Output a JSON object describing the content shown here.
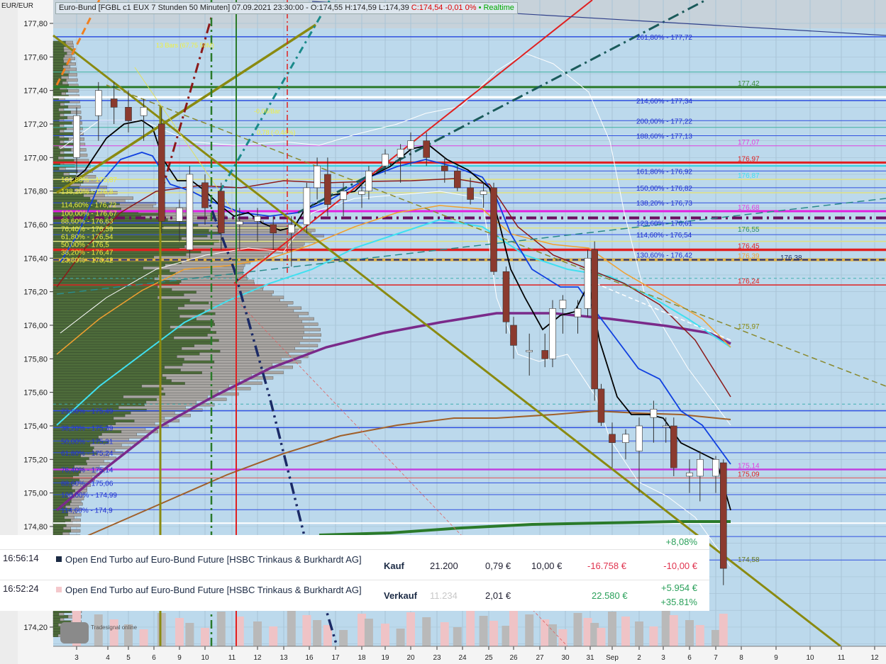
{
  "header": {
    "unit": "EUR/EUR",
    "title": "Euro-Bund [FGBL c1 EUX 7 Stunden 50 Minuten] 07.09.2021 23:30:00 - O:174,55 H:174,59 L:174,39",
    "change": "C:174,54 -0,01 0%",
    "realtime": "• Realtime"
  },
  "watermark": "Tradesignal online",
  "colors": {
    "background": "#bcd9ec",
    "bear_candle": "#8b3a2e",
    "bull_candle": "#ffffff",
    "gain": "#2aa05a",
    "loss": "#e0344f"
  },
  "trades": {
    "top_partial": "+8,08%",
    "rows": [
      {
        "time": "16:56:14",
        "marker_color": "#1b2a44",
        "name": "Open End Turbo auf Euro-Bund Future [HSBC Trinkaus & Burkhardt AG]",
        "side": "Kauf",
        "qty": "21.200",
        "price": "0,79 €",
        "fee": "10,00 €",
        "amount": "-16.758 €",
        "pl": "-10,00 €",
        "pl_pct": ""
      },
      {
        "time": "16:52:24",
        "marker_color": "#f4c8cc",
        "name": "Open End Turbo auf Euro-Bund Future [HSBC Trinkaus & Burkhardt AG]",
        "side": "Verkauf",
        "qty": "11.234",
        "price": "2,01 €",
        "fee": "",
        "amount": "22.580 €",
        "pl": "+5.954 €",
        "pl_pct": "+35.81%"
      }
    ]
  },
  "chart_data": {
    "type": "candlestick",
    "yrange": [
      174.1,
      177.87
    ],
    "y_ticks": [
      "177,80",
      "177,60",
      "177,40",
      "177,20",
      "177,00",
      "176,80",
      "176,60",
      "176,40",
      "176,20",
      "176,00",
      "175,80",
      "175,60",
      "175,40",
      "175,20",
      "175,00",
      "174,80",
      "174,20"
    ],
    "x_ticks": [
      "3",
      "4",
      "5",
      "6",
      "9",
      "10",
      "11",
      "12",
      "13",
      "16",
      "17",
      "18",
      "19",
      "20",
      "23",
      "24",
      "25",
      "26",
      "27",
      "30",
      "31",
      "Sep",
      "2",
      "3",
      "6",
      "7",
      "8",
      "9",
      "10",
      "11",
      "12"
    ],
    "candles": [
      {
        "d": 0,
        "o": 177.0,
        "h": 177.3,
        "l": 176.9,
        "c": 177.25
      },
      {
        "d": 0.7,
        "o": 177.25,
        "h": 177.45,
        "l": 177.1,
        "c": 177.4
      },
      {
        "d": 1.3,
        "o": 177.35,
        "h": 177.45,
        "l": 177.2,
        "c": 177.3
      },
      {
        "d": 2,
        "o": 177.3,
        "h": 177.4,
        "l": 177.15,
        "c": 177.22
      },
      {
        "d": 2.6,
        "o": 177.25,
        "h": 177.35,
        "l": 177.1,
        "c": 177.3
      },
      {
        "d": 3.3,
        "o": 177.2,
        "h": 177.3,
        "l": 176.55,
        "c": 176.62
      },
      {
        "d": 4,
        "o": 176.62,
        "h": 176.75,
        "l": 176.5,
        "c": 176.7
      },
      {
        "d": 4.4,
        "o": 176.45,
        "h": 176.95,
        "l": 176.4,
        "c": 176.9
      },
      {
        "d": 5,
        "o": 176.85,
        "h": 176.9,
        "l": 176.6,
        "c": 176.7
      },
      {
        "d": 5.6,
        "o": 176.8,
        "h": 176.85,
        "l": 176.45,
        "c": 176.55
      },
      {
        "d": 6.3,
        "o": 176.6,
        "h": 176.7,
        "l": 176.45,
        "c": 176.62
      },
      {
        "d": 7,
        "o": 176.62,
        "h": 176.7,
        "l": 176.5,
        "c": 176.65
      },
      {
        "d": 7.6,
        "o": 176.6,
        "h": 176.65,
        "l": 176.45,
        "c": 176.55
      },
      {
        "d": 8.3,
        "o": 176.55,
        "h": 176.65,
        "l": 176.35,
        "c": 176.6
      },
      {
        "d": 8.9,
        "o": 176.6,
        "h": 176.85,
        "l": 176.55,
        "c": 176.82
      },
      {
        "d": 9.3,
        "o": 176.82,
        "h": 177.0,
        "l": 176.75,
        "c": 176.95
      },
      {
        "d": 9.7,
        "o": 176.9,
        "h": 177.0,
        "l": 176.65,
        "c": 176.72
      },
      {
        "d": 10.3,
        "o": 176.75,
        "h": 176.85,
        "l": 176.65,
        "c": 176.8
      },
      {
        "d": 11,
        "o": 176.78,
        "h": 176.85,
        "l": 176.7,
        "c": 176.8
      },
      {
        "d": 11.3,
        "o": 176.8,
        "h": 176.95,
        "l": 176.75,
        "c": 176.92
      },
      {
        "d": 12,
        "o": 176.95,
        "h": 177.05,
        "l": 176.9,
        "c": 177.02
      },
      {
        "d": 12.6,
        "o": 177.0,
        "h": 177.08,
        "l": 176.85,
        "c": 177.05
      },
      {
        "d": 13,
        "o": 177.05,
        "h": 177.15,
        "l": 176.95,
        "c": 177.1
      },
      {
        "d": 13.6,
        "o": 177.1,
        "h": 177.15,
        "l": 176.95,
        "c": 177.0
      },
      {
        "d": 14.3,
        "o": 176.95,
        "h": 177.0,
        "l": 176.85,
        "c": 176.92
      },
      {
        "d": 14.8,
        "o": 176.92,
        "h": 176.95,
        "l": 176.8,
        "c": 176.82
      },
      {
        "d": 15.3,
        "o": 176.82,
        "h": 176.88,
        "l": 176.72,
        "c": 176.75
      },
      {
        "d": 15.8,
        "o": 176.78,
        "h": 176.85,
        "l": 176.7,
        "c": 176.8
      },
      {
        "d": 16.2,
        "o": 176.82,
        "h": 176.85,
        "l": 176.3,
        "c": 176.32
      },
      {
        "d": 16.7,
        "o": 176.32,
        "h": 176.35,
        "l": 175.95,
        "c": 176.02
      },
      {
        "d": 17,
        "o": 176.0,
        "h": 176.05,
        "l": 175.8,
        "c": 175.88
      },
      {
        "d": 17.6,
        "o": 175.85,
        "h": 175.95,
        "l": 175.7,
        "c": 175.85
      },
      {
        "d": 18.2,
        "o": 175.85,
        "h": 175.95,
        "l": 175.75,
        "c": 175.8
      },
      {
        "d": 18.5,
        "o": 175.8,
        "h": 176.15,
        "l": 175.75,
        "c": 176.1
      },
      {
        "d": 18.9,
        "o": 176.1,
        "h": 176.18,
        "l": 175.95,
        "c": 176.15
      },
      {
        "d": 19.5,
        "o": 176.05,
        "h": 176.15,
        "l": 175.95,
        "c": 176.1
      },
      {
        "d": 19.9,
        "o": 176.1,
        "h": 176.45,
        "l": 176.05,
        "c": 176.4
      },
      {
        "d": 20.2,
        "o": 176.45,
        "h": 176.5,
        "l": 175.55,
        "c": 175.62
      },
      {
        "d": 20.5,
        "o": 175.62,
        "h": 175.65,
        "l": 175.4,
        "c": 175.42
      },
      {
        "d": 21,
        "o": 175.35,
        "h": 175.42,
        "l": 175.15,
        "c": 175.3
      },
      {
        "d": 21.5,
        "o": 175.3,
        "h": 175.38,
        "l": 175.2,
        "c": 175.35
      },
      {
        "d": 22,
        "o": 175.25,
        "h": 175.45,
        "l": 175.0,
        "c": 175.4
      },
      {
        "d": 22.6,
        "o": 175.45,
        "h": 175.55,
        "l": 175.3,
        "c": 175.5
      },
      {
        "d": 23.1,
        "o": 175.4,
        "h": 175.45,
        "l": 175.3,
        "c": 175.4
      },
      {
        "d": 23.4,
        "o": 175.4,
        "h": 175.45,
        "l": 175.1,
        "c": 175.15
      },
      {
        "d": 24,
        "o": 175.1,
        "h": 175.2,
        "l": 175.0,
        "c": 175.12
      },
      {
        "d": 24.4,
        "o": 175.1,
        "h": 175.25,
        "l": 174.95,
        "c": 175.2
      },
      {
        "d": 25,
        "o": 175.1,
        "h": 175.22,
        "l": 175.0,
        "c": 175.2
      },
      {
        "d": 25.3,
        "o": 175.18,
        "h": 175.2,
        "l": 174.45,
        "c": 174.55
      }
    ],
    "levels_right": [
      {
        "label": "261,80% - 177,72",
        "p": 177.72,
        "color": "#2030d0"
      },
      {
        "label": "177,42",
        "p": 177.42,
        "color": "#3a8a3a"
      },
      {
        "label": "214,60% - 177,34",
        "p": 177.34,
        "color": "#2030d0"
      },
      {
        "label": "200,00% - 177,22",
        "p": 177.22,
        "color": "#2030d0"
      },
      {
        "label": "177,07",
        "p": 177.07,
        "color": "#e040e0"
      },
      {
        "label": "188,60% - 177,13",
        "p": 177.13,
        "color": "#2030d0"
      },
      {
        "label": "176,97",
        "p": 176.97,
        "color": "#e02020"
      },
      {
        "label": "176,87",
        "p": 176.87,
        "color": "#40e0f0"
      },
      {
        "label": "161,80% - 176,92",
        "p": 176.92,
        "color": "#2030d0"
      },
      {
        "label": "150,00% - 176,82",
        "p": 176.82,
        "color": "#2030d0"
      },
      {
        "label": "176,68",
        "p": 176.68,
        "color": "#e040e0"
      },
      {
        "label": "138,20% - 176,73",
        "p": 176.73,
        "color": "#2030d0"
      },
      {
        "label": "123,60% - 176,61",
        "p": 176.61,
        "color": "#2030d0"
      },
      {
        "label": "176,55",
        "p": 176.55,
        "color": "#2a8a6a"
      },
      {
        "label": "114,60% - 176,54",
        "p": 176.54,
        "color": "#2030d0"
      },
      {
        "label": "176,38",
        "p": 176.38,
        "color": "#1b2a66"
      },
      {
        "label": "176,45",
        "p": 176.45,
        "color": "#e02020"
      },
      {
        "label": "130,60% - 176,42",
        "p": 176.42,
        "color": "#2030d0"
      },
      {
        "label": "176,39",
        "p": 176.39,
        "color": "#f0a030"
      },
      {
        "label": "176,24",
        "p": 176.24,
        "color": "#e02020"
      },
      {
        "label": "175,97",
        "p": 175.97,
        "color": "#8a8a10"
      },
      {
        "label": "175,14",
        "p": 175.14,
        "color": "#e040e0"
      },
      {
        "label": "175,09",
        "p": 175.09,
        "color": "#e02020"
      },
      {
        "label": "174,58",
        "p": 174.58,
        "color": "#6a7a20"
      }
    ],
    "levels_left_yellow": [
      "161,80% - 176,87",
      "138,20% - 176,8",
      "114,60% - 176,72",
      "100,00% - 176,67",
      "88,60% - 176,63",
      "76,40% - 176,59",
      "61,80% - 176,54",
      "50,00% - 176,5",
      "38,20% - 176,47",
      "23,60% - 176,42"
    ],
    "levels_left_blue": [
      "23,60% - 175,49",
      "38,20% - 175,39",
      "50,00% - 175,31",
      "61,80% - 175,24",
      "76,40% - 175,14",
      "88,60% - 175,06",
      "100,00% - 174,99",
      "114,60% - 174,9"
    ],
    "annotations": [
      "13 Bars (67,75 50M)",
      "-0,06/Bar",
      "0,78 (-0,44%)"
    ],
    "horizontal_lines": [
      {
        "p": 177.72,
        "color": "#3050e0",
        "w": 1.5
      },
      {
        "p": 177.51,
        "color": "#40b0a0",
        "w": 1
      },
      {
        "p": 177.42,
        "color": "#2a7a2a",
        "w": 3
      },
      {
        "p": 177.36,
        "color": "#ffffff",
        "w": 3
      },
      {
        "p": 177.34,
        "color": "#3050e0",
        "w": 1.5
      },
      {
        "p": 177.22,
        "color": "#3050e0",
        "w": 1
      },
      {
        "p": 177.18,
        "color": "#40b0a0",
        "w": 1
      },
      {
        "p": 177.13,
        "color": "#3050e0",
        "w": 1
      },
      {
        "p": 177.07,
        "color": "#e040e0",
        "w": 1
      },
      {
        "p": 176.97,
        "color": "#e02020",
        "w": 3
      },
      {
        "p": 176.95,
        "color": "#30d0e0",
        "w": 2
      },
      {
        "p": 176.92,
        "color": "#3050e0",
        "w": 1
      },
      {
        "p": 176.87,
        "color": "#e0e080",
        "w": 1.5
      },
      {
        "p": 176.82,
        "color": "#3050e0",
        "w": 1
      },
      {
        "p": 176.79,
        "color": "#e0e080",
        "w": 1.5
      },
      {
        "p": 176.73,
        "color": "#3050e0",
        "w": 1
      },
      {
        "p": 176.68,
        "color": "#e020e0",
        "w": 3
      },
      {
        "p": 176.64,
        "color": "#6a1060",
        "w": 4,
        "dash": "14 6 3 6"
      },
      {
        "p": 176.61,
        "color": "#3050e0",
        "w": 1.5
      },
      {
        "p": 176.58,
        "color": "#e0e080",
        "w": 1.5
      },
      {
        "p": 176.54,
        "color": "#3050e0",
        "w": 1
      },
      {
        "p": 176.5,
        "color": "#e0e080",
        "w": 1.5
      },
      {
        "p": 176.45,
        "color": "#e02020",
        "w": 3.5
      },
      {
        "p": 176.39,
        "color": "#e0b040",
        "w": 4
      },
      {
        "p": 176.39,
        "color": "#1b2a80",
        "w": 2,
        "dash": "8 4"
      },
      {
        "p": 176.28,
        "color": "#40b0b0",
        "w": 1,
        "dash": "4 4"
      },
      {
        "p": 176.24,
        "color": "#e02020",
        "w": 1.5
      },
      {
        "p": 175.53,
        "color": "#40b0b0",
        "w": 1,
        "dash": "4 4"
      },
      {
        "p": 175.49,
        "color": "#3050e0",
        "w": 1.5
      },
      {
        "p": 175.39,
        "color": "#3050e0",
        "w": 1.5
      },
      {
        "p": 175.31,
        "color": "#3050e0",
        "w": 1
      },
      {
        "p": 175.24,
        "color": "#3050e0",
        "w": 1
      },
      {
        "p": 175.14,
        "color": "#c040e0",
        "w": 2.5
      },
      {
        "p": 175.09,
        "color": "#e05050",
        "w": 1
      },
      {
        "p": 175.06,
        "color": "#3050e0",
        "w": 1
      },
      {
        "p": 174.99,
        "color": "#3050e0",
        "w": 1
      },
      {
        "p": 174.9,
        "color": "#3050e0",
        "w": 1
      },
      {
        "p": 174.82,
        "color": "#ffffff",
        "w": 2
      },
      {
        "p": 174.74,
        "color": "#3050e0",
        "w": 1
      },
      {
        "p": 174.6,
        "color": "#3050e0",
        "w": 1
      }
    ]
  }
}
